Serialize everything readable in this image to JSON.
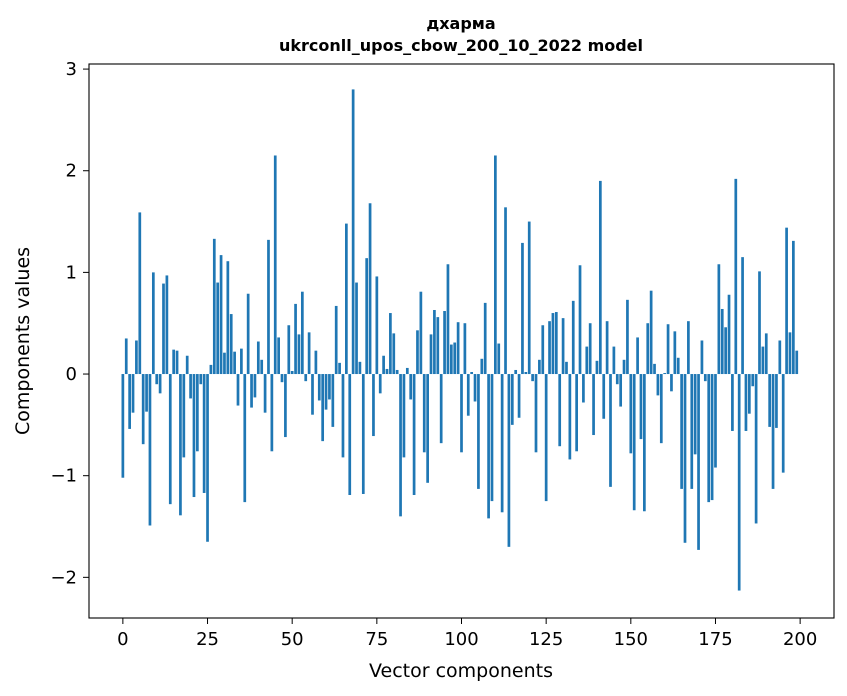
{
  "chart_data": {
    "type": "bar",
    "title": "дхарма",
    "subtitle": "ukrconll_upos_cbow_200_10_2022 model",
    "xlabel": "Vector components",
    "ylabel": "Components values",
    "xlim": [
      -10,
      210
    ],
    "ylim": [
      -2.4,
      3.05
    ],
    "xticks": [
      0,
      25,
      50,
      75,
      100,
      125,
      150,
      175,
      200
    ],
    "yticks": [
      -2,
      -1,
      0,
      1,
      2,
      3
    ],
    "ytick_labels": [
      "−2",
      "−1",
      "0",
      "1",
      "2",
      "3"
    ],
    "grid": false,
    "bar_color": "#1f77b4",
    "x": [
      0,
      1,
      2,
      3,
      4,
      5,
      6,
      7,
      8,
      9,
      10,
      11,
      12,
      13,
      14,
      15,
      16,
      17,
      18,
      19,
      20,
      21,
      22,
      23,
      24,
      25,
      26,
      27,
      28,
      29,
      30,
      31,
      32,
      33,
      34,
      35,
      36,
      37,
      38,
      39,
      40,
      41,
      42,
      43,
      44,
      45,
      46,
      47,
      48,
      49,
      50,
      51,
      52,
      53,
      54,
      55,
      56,
      57,
      58,
      59,
      60,
      61,
      62,
      63,
      64,
      65,
      66,
      67,
      68,
      69,
      70,
      71,
      72,
      73,
      74,
      75,
      76,
      77,
      78,
      79,
      80,
      81,
      82,
      83,
      84,
      85,
      86,
      87,
      88,
      89,
      90,
      91,
      92,
      93,
      94,
      95,
      96,
      97,
      98,
      99,
      100,
      101,
      102,
      103,
      104,
      105,
      106,
      107,
      108,
      109,
      110,
      111,
      112,
      113,
      114,
      115,
      116,
      117,
      118,
      119,
      120,
      121,
      122,
      123,
      124,
      125,
      126,
      127,
      128,
      129,
      130,
      131,
      132,
      133,
      134,
      135,
      136,
      137,
      138,
      139,
      140,
      141,
      142,
      143,
      144,
      145,
      146,
      147,
      148,
      149,
      150,
      151,
      152,
      153,
      154,
      155,
      156,
      157,
      158,
      159,
      160,
      161,
      162,
      163,
      164,
      165,
      166,
      167,
      168,
      169,
      170,
      171,
      172,
      173,
      174,
      175,
      176,
      177,
      178,
      179,
      180,
      181,
      182,
      183,
      184,
      185,
      186,
      187,
      188,
      189,
      190,
      191,
      192,
      193,
      194,
      195,
      196,
      197,
      198,
      199
    ],
    "values": [
      -1.02,
      0.35,
      -0.54,
      -0.38,
      0.33,
      1.59,
      -0.69,
      -0.37,
      -1.49,
      1.0,
      -0.1,
      -0.19,
      0.89,
      0.97,
      -1.28,
      0.24,
      0.23,
      -1.39,
      -0.82,
      0.18,
      -0.24,
      -1.21,
      -0.76,
      -0.1,
      -1.17,
      -1.65,
      0.09,
      1.33,
      0.9,
      1.17,
      0.21,
      1.11,
      0.59,
      0.22,
      -0.31,
      0.25,
      -1.26,
      0.79,
      -0.33,
      -0.23,
      0.32,
      0.14,
      -0.38,
      1.32,
      -0.76,
      2.15,
      0.36,
      -0.08,
      -0.62,
      0.48,
      0.03,
      0.69,
      0.39,
      0.81,
      -0.07,
      0.41,
      -0.4,
      0.23,
      -0.26,
      -0.66,
      -0.35,
      -0.25,
      -0.52,
      0.67,
      0.11,
      -0.82,
      1.48,
      -1.19,
      2.8,
      0.9,
      0.12,
      -1.18,
      1.14,
      1.68,
      -0.61,
      0.96,
      -0.19,
      0.18,
      0.05,
      0.6,
      0.4,
      0.04,
      -1.4,
      -0.82,
      0.06,
      -0.25,
      -1.19,
      0.43,
      0.81,
      -0.77,
      -1.07,
      0.39,
      0.63,
      0.56,
      -0.68,
      0.62,
      1.08,
      0.29,
      0.31,
      0.51,
      -0.77,
      0.5,
      -0.41,
      0.02,
      -0.27,
      -1.13,
      0.15,
      0.7,
      -1.42,
      -1.25,
      2.15,
      0.3,
      -1.36,
      1.64,
      -1.7,
      -0.5,
      0.04,
      -0.43,
      1.29,
      0.02,
      1.5,
      -0.07,
      -0.77,
      0.14,
      0.48,
      -1.25,
      0.52,
      0.6,
      0.61,
      -0.71,
      0.55,
      0.12,
      -0.84,
      0.72,
      -0.76,
      1.07,
      -0.28,
      0.27,
      0.5,
      -0.6,
      0.13,
      1.9,
      -0.44,
      0.52,
      -1.11,
      0.27,
      -0.1,
      -0.32,
      0.14,
      0.73,
      -0.78,
      -1.34,
      0.36,
      -0.64,
      -1.35,
      0.5,
      0.82,
      0.1,
      -0.21,
      -0.68,
      0.01,
      0.49,
      -0.17,
      0.42,
      0.16,
      -1.13,
      -1.66,
      0.52,
      -1.13,
      -0.79,
      -1.73,
      0.33,
      -0.07,
      -1.26,
      -1.24,
      -0.92,
      1.08,
      0.64,
      0.46,
      0.78,
      -0.56,
      1.92,
      -2.13,
      1.15,
      -0.56,
      -0.39,
      -0.12,
      -1.47,
      1.01,
      0.27,
      0.4,
      -0.52,
      -1.13,
      -0.53,
      0.33,
      -0.97,
      1.44,
      0.41,
      1.31,
      0.23
    ]
  }
}
